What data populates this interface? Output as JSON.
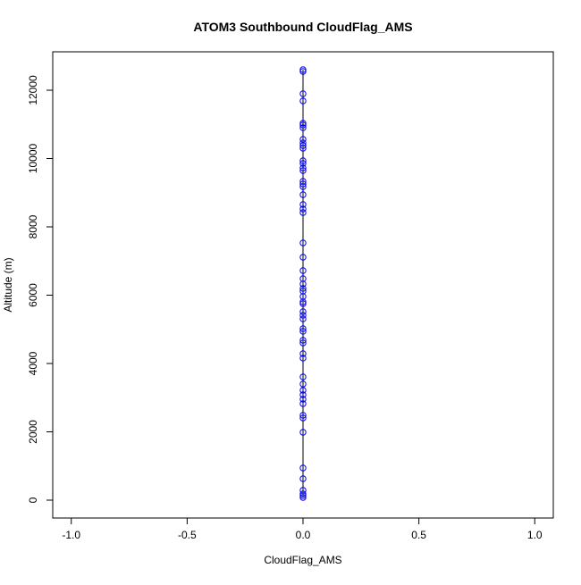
{
  "chart_data": {
    "type": "scatter",
    "title": "ATOM3 Southbound CloudFlag_AMS",
    "x_label": "CloudFlag_AMS",
    "y_label": "Altitude (m)",
    "xlim": [
      -1.08,
      1.08
    ],
    "xticks": [
      {
        "value": -1,
        "label": "-1.0"
      },
      {
        "value": -0.5,
        "label": "-0.5"
      },
      {
        "value": 0,
        "label": "0.0"
      },
      {
        "value": 0.5,
        "label": "0.5"
      },
      {
        "value": 1,
        "label": "1.0"
      }
    ],
    "ylim": [
      -523,
      13124
    ],
    "yticks": [
      0,
      2000,
      4000,
      6000,
      8000,
      10000,
      12000
    ],
    "color": "#0000ff",
    "line_color": "#000000",
    "x": [
      0,
      0,
      0,
      0,
      0,
      0,
      0,
      0,
      0,
      0,
      0,
      0,
      0,
      0,
      0,
      0,
      0,
      0,
      0,
      0,
      0,
      0,
      0,
      0,
      0,
      0,
      0,
      0,
      0,
      0,
      0,
      0,
      0,
      0,
      0,
      0,
      0,
      0,
      0,
      0,
      0,
      0,
      0,
      0,
      0,
      0,
      0,
      0,
      0,
      0,
      0,
      0,
      0,
      0,
      0,
      0
    ],
    "y": [
      12601,
      12549,
      11895,
      11686,
      11033,
      10980,
      10902,
      10562,
      10458,
      10379,
      10301,
      9935,
      9856,
      9725,
      9647,
      9333,
      9255,
      9176,
      8941,
      8654,
      8523,
      8418,
      7529,
      7111,
      6719,
      6484,
      6327,
      6196,
      6118,
      5961,
      5804,
      5752,
      5516,
      5412,
      5307,
      5020,
      4941,
      4680,
      4601,
      4288,
      4157,
      3608,
      3399,
      3216,
      3085,
      2954,
      2824,
      2484,
      2405,
      1987,
      941,
      627,
      288,
      183,
      131,
      78
    ]
  }
}
